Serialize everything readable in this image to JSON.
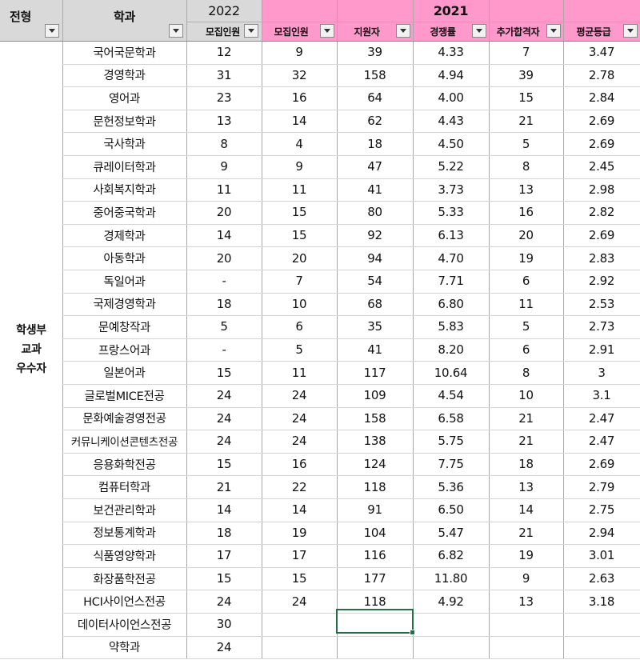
{
  "header": {
    "type_label": "전형",
    "dept_label": "학과",
    "year_2022": "2022",
    "year_2021": "2021",
    "col_2022_quota": "모집인원",
    "col_2021_quota": "모집인원",
    "col_applicants": "지원자",
    "col_ratio": "경쟁률",
    "col_additional": "추가합격자",
    "col_avg_grade": "평균등급"
  },
  "admission_type": [
    "학생부",
    "교과",
    "우수자"
  ],
  "rows": [
    {
      "dept": "국어국문학과",
      "q2022": "12",
      "q2021": "9",
      "app": "39",
      "ratio": "4.33",
      "add": "7",
      "grade": "3.47"
    },
    {
      "dept": "경영학과",
      "q2022": "31",
      "q2021": "32",
      "app": "158",
      "ratio": "4.94",
      "add": "39",
      "grade": "2.78"
    },
    {
      "dept": "영어과",
      "q2022": "23",
      "q2021": "16",
      "app": "64",
      "ratio": "4.00",
      "add": "15",
      "grade": "2.84"
    },
    {
      "dept": "문헌정보학과",
      "q2022": "13",
      "q2021": "14",
      "app": "62",
      "ratio": "4.43",
      "add": "21",
      "grade": "2.69"
    },
    {
      "dept": "국사학과",
      "q2022": "8",
      "q2021": "4",
      "app": "18",
      "ratio": "4.50",
      "add": "5",
      "grade": "2.69"
    },
    {
      "dept": "큐레이터학과",
      "q2022": "9",
      "q2021": "9",
      "app": "47",
      "ratio": "5.22",
      "add": "8",
      "grade": "2.45"
    },
    {
      "dept": "사회복지학과",
      "q2022": "11",
      "q2021": "11",
      "app": "41",
      "ratio": "3.73",
      "add": "13",
      "grade": "2.98"
    },
    {
      "dept": "중어중국학과",
      "q2022": "20",
      "q2021": "15",
      "app": "80",
      "ratio": "5.33",
      "add": "16",
      "grade": "2.82"
    },
    {
      "dept": "경제학과",
      "q2022": "14",
      "q2021": "15",
      "app": "92",
      "ratio": "6.13",
      "add": "20",
      "grade": "2.69"
    },
    {
      "dept": "아동학과",
      "q2022": "20",
      "q2021": "20",
      "app": "94",
      "ratio": "4.70",
      "add": "19",
      "grade": "2.83"
    },
    {
      "dept": "독일어과",
      "q2022": "-",
      "q2021": "7",
      "app": "54",
      "ratio": "7.71",
      "add": "6",
      "grade": "2.92"
    },
    {
      "dept": "국제경영학과",
      "q2022": "18",
      "q2021": "10",
      "app": "68",
      "ratio": "6.80",
      "add": "11",
      "grade": "2.53"
    },
    {
      "dept": "문예창작과",
      "q2022": "5",
      "q2021": "6",
      "app": "35",
      "ratio": "5.83",
      "add": "5",
      "grade": "2.73"
    },
    {
      "dept": "프랑스어과",
      "q2022": "-",
      "q2021": "5",
      "app": "41",
      "ratio": "8.20",
      "add": "6",
      "grade": "2.91"
    },
    {
      "dept": "일본어과",
      "q2022": "15",
      "q2021": "11",
      "app": "117",
      "ratio": "10.64",
      "add": "8",
      "grade": "3"
    },
    {
      "dept": "글로벌MICE전공",
      "q2022": "24",
      "q2021": "24",
      "app": "109",
      "ratio": "4.54",
      "add": "10",
      "grade": "3.1"
    },
    {
      "dept": "문화예술경영전공",
      "q2022": "24",
      "q2021": "24",
      "app": "158",
      "ratio": "6.58",
      "add": "21",
      "grade": "2.47"
    },
    {
      "dept": "커뮤니케이션콘텐츠전공",
      "q2022": "24",
      "q2021": "24",
      "app": "138",
      "ratio": "5.75",
      "add": "21",
      "grade": "2.47"
    },
    {
      "dept": "응용화학전공",
      "q2022": "15",
      "q2021": "16",
      "app": "124",
      "ratio": "7.75",
      "add": "18",
      "grade": "2.69"
    },
    {
      "dept": "컴퓨터학과",
      "q2022": "21",
      "q2021": "22",
      "app": "118",
      "ratio": "5.36",
      "add": "13",
      "grade": "2.79"
    },
    {
      "dept": "보건관리학과",
      "q2022": "14",
      "q2021": "14",
      "app": "91",
      "ratio": "6.50",
      "add": "14",
      "grade": "2.75"
    },
    {
      "dept": "정보통계학과",
      "q2022": "18",
      "q2021": "19",
      "app": "104",
      "ratio": "5.47",
      "add": "21",
      "grade": "2.94"
    },
    {
      "dept": "식품영양학과",
      "q2022": "17",
      "q2021": "17",
      "app": "116",
      "ratio": "6.82",
      "add": "19",
      "grade": "3.01"
    },
    {
      "dept": "화장품학전공",
      "q2022": "15",
      "q2021": "15",
      "app": "177",
      "ratio": "11.80",
      "add": "9",
      "grade": "2.63"
    },
    {
      "dept": "HCI사이언스전공",
      "q2022": "24",
      "q2021": "24",
      "app": "118",
      "ratio": "4.92",
      "add": "13",
      "grade": "3.18"
    },
    {
      "dept": "데이터사이언스전공",
      "q2022": "30",
      "q2021": "",
      "app": "",
      "ratio": "",
      "add": "",
      "grade": ""
    },
    {
      "dept": "약학과",
      "q2022": "24",
      "q2021": "",
      "app": "",
      "ratio": "",
      "add": "",
      "grade": ""
    }
  ],
  "colors": {
    "header_gray": "#d9d9d9",
    "header_pink": "#ff99cc",
    "selection_green": "#1e7145"
  }
}
